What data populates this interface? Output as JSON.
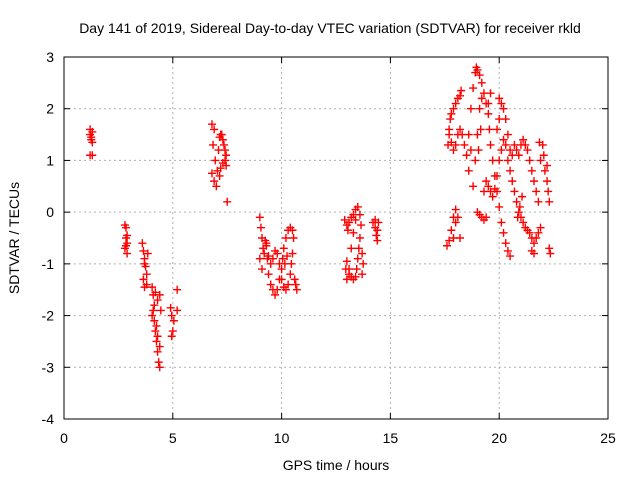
{
  "chart_data": {
    "type": "scatter",
    "title": "Day 141 of 2019, Sidereal Day-to-day VTEC variation (SDTVAR) for receiver rkld",
    "xlabel": "GPS time / hours",
    "ylabel": "SDTVAR / TECUs",
    "xlim": [
      0,
      25
    ],
    "ylim": [
      -4,
      3
    ],
    "xticks": [
      "0",
      "5",
      "10",
      "15",
      "20",
      "25"
    ],
    "yticks": [
      "-4",
      "-3",
      "-2",
      "-1",
      "0",
      "1",
      "2",
      "3"
    ],
    "grid": true,
    "marker": "plus",
    "color": "#ff0000",
    "points": [
      [
        1.2,
        1.6
      ],
      [
        1.2,
        1.5
      ],
      [
        1.25,
        1.45
      ],
      [
        1.25,
        1.4
      ],
      [
        1.3,
        1.55
      ],
      [
        1.3,
        1.35
      ],
      [
        1.2,
        1.1
      ],
      [
        1.3,
        1.1
      ],
      [
        2.8,
        -0.25
      ],
      [
        2.85,
        -0.3
      ],
      [
        2.85,
        -0.5
      ],
      [
        2.9,
        -0.6
      ],
      [
        2.8,
        -0.7
      ],
      [
        2.9,
        -0.8
      ],
      [
        2.85,
        -0.65
      ],
      [
        2.9,
        -0.45
      ],
      [
        3.6,
        -0.6
      ],
      [
        3.65,
        -0.75
      ],
      [
        3.7,
        -0.9
      ],
      [
        3.75,
        -1.05
      ],
      [
        3.8,
        -1.2
      ],
      [
        3.65,
        -1.3
      ],
      [
        3.7,
        -1.0
      ],
      [
        3.8,
        -1.4
      ],
      [
        3.7,
        -1.45
      ],
      [
        3.85,
        -0.8
      ],
      [
        4.05,
        -1.45
      ],
      [
        4.1,
        -1.6
      ],
      [
        4.1,
        -1.9
      ],
      [
        4.15,
        -2.1
      ],
      [
        4.2,
        -2.3
      ],
      [
        4.25,
        -2.5
      ],
      [
        4.3,
        -2.7
      ],
      [
        4.35,
        -2.9
      ],
      [
        4.4,
        -3.0
      ],
      [
        4.05,
        -2.0
      ],
      [
        4.15,
        -1.8
      ],
      [
        4.25,
        -2.2
      ],
      [
        4.3,
        -2.4
      ],
      [
        4.4,
        -2.6
      ],
      [
        4.45,
        -1.9
      ],
      [
        4.4,
        -1.6
      ],
      [
        4.3,
        -1.7
      ],
      [
        4.2,
        -1.55
      ],
      [
        4.9,
        -1.85
      ],
      [
        4.95,
        -2.0
      ],
      [
        5.0,
        -2.3
      ],
      [
        4.95,
        -2.4
      ],
      [
        5.05,
        -2.1
      ],
      [
        5.2,
        -1.5
      ],
      [
        5.2,
        -1.9
      ],
      [
        6.8,
        1.7
      ],
      [
        6.9,
        1.6
      ],
      [
        6.85,
        1.3
      ],
      [
        6.95,
        1.0
      ],
      [
        6.8,
        0.75
      ],
      [
        6.9,
        0.6
      ],
      [
        7.0,
        0.5
      ],
      [
        7.05,
        0.8
      ],
      [
        7.1,
        1.2
      ],
      [
        7.15,
        1.45
      ],
      [
        7.2,
        1.5
      ],
      [
        7.3,
        1.4
      ],
      [
        7.35,
        1.3
      ],
      [
        7.4,
        1.2
      ],
      [
        7.4,
        1.0
      ],
      [
        7.45,
        0.9
      ],
      [
        7.3,
        0.95
      ],
      [
        7.2,
        0.85
      ],
      [
        7.15,
        0.7
      ],
      [
        7.25,
        1.5
      ],
      [
        7.45,
        1.1
      ],
      [
        7.5,
        0.2
      ],
      [
        9.0,
        -0.1
      ],
      [
        9.05,
        -0.3
      ],
      [
        9.1,
        -0.5
      ],
      [
        9.15,
        -0.7
      ],
      [
        9.0,
        -0.9
      ],
      [
        9.1,
        -1.1
      ],
      [
        9.2,
        -0.8
      ],
      [
        9.3,
        -0.6
      ],
      [
        9.35,
        -0.9
      ],
      [
        9.4,
        -1.2
      ],
      [
        9.5,
        -1.4
      ],
      [
        9.6,
        -1.5
      ],
      [
        9.7,
        -1.6
      ],
      [
        9.8,
        -1.5
      ],
      [
        9.9,
        -1.3
      ],
      [
        10.0,
        -1.1
      ],
      [
        10.05,
        -0.9
      ],
      [
        10.1,
        -0.7
      ],
      [
        10.2,
        -0.5
      ],
      [
        10.3,
        -0.35
      ],
      [
        10.4,
        -0.3
      ],
      [
        10.5,
        -0.35
      ],
      [
        10.55,
        -0.5
      ],
      [
        10.5,
        -0.8
      ],
      [
        10.45,
        -1.0
      ],
      [
        10.4,
        -1.2
      ],
      [
        10.3,
        -1.4
      ],
      [
        10.2,
        -1.5
      ],
      [
        10.1,
        -1.45
      ],
      [
        10.0,
        -1.3
      ],
      [
        9.9,
        -1.0
      ],
      [
        9.8,
        -0.8
      ],
      [
        9.7,
        -0.75
      ],
      [
        9.6,
        -0.9
      ],
      [
        9.5,
        -1.0
      ],
      [
        9.4,
        -0.85
      ],
      [
        9.3,
        -0.65
      ],
      [
        9.25,
        -0.55
      ],
      [
        10.6,
        -1.3
      ],
      [
        10.65,
        -1.4
      ],
      [
        10.7,
        -1.5
      ],
      [
        10.25,
        -0.85
      ],
      [
        10.15,
        -1.0
      ],
      [
        12.9,
        -0.15
      ],
      [
        13.0,
        -0.25
      ],
      [
        13.05,
        -0.35
      ],
      [
        13.1,
        -0.2
      ],
      [
        13.2,
        -0.1
      ],
      [
        13.3,
        -0.05
      ],
      [
        13.4,
        0.05
      ],
      [
        13.5,
        0.1
      ],
      [
        13.6,
        -0.05
      ],
      [
        13.65,
        -0.25
      ],
      [
        13.6,
        -0.5
      ],
      [
        13.55,
        -0.7
      ],
      [
        13.5,
        -0.9
      ],
      [
        13.45,
        -1.1
      ],
      [
        13.4,
        -1.25
      ],
      [
        13.3,
        -1.3
      ],
      [
        13.2,
        -1.25
      ],
      [
        13.1,
        -1.1
      ],
      [
        13.0,
        -0.95
      ],
      [
        12.95,
        -1.1
      ],
      [
        13.0,
        -1.3
      ],
      [
        13.1,
        -1.2
      ],
      [
        13.2,
        -0.7
      ],
      [
        13.3,
        -0.4
      ],
      [
        13.4,
        -0.15
      ],
      [
        13.7,
        -0.8
      ],
      [
        13.75,
        -1.0
      ],
      [
        13.7,
        -1.2
      ],
      [
        14.2,
        -0.2
      ],
      [
        14.3,
        -0.3
      ],
      [
        14.35,
        -0.45
      ],
      [
        14.4,
        -0.55
      ],
      [
        14.3,
        -0.15
      ],
      [
        14.45,
        -0.2
      ],
      [
        14.4,
        -0.35
      ],
      [
        17.6,
        -0.65
      ],
      [
        17.7,
        -0.55
      ],
      [
        17.8,
        -0.35
      ],
      [
        17.9,
        -0.1
      ],
      [
        18.0,
        0.05
      ],
      [
        18.1,
        -0.1
      ],
      [
        17.65,
        1.3
      ],
      [
        17.7,
        1.6
      ],
      [
        17.75,
        1.8
      ],
      [
        17.8,
        1.9
      ],
      [
        17.9,
        2.0
      ],
      [
        18.0,
        2.1
      ],
      [
        18.1,
        2.2
      ],
      [
        18.2,
        2.25
      ],
      [
        18.25,
        2.35
      ],
      [
        17.7,
        1.5
      ],
      [
        17.8,
        1.35
      ],
      [
        17.9,
        1.2
      ],
      [
        18.0,
        1.3
      ],
      [
        18.1,
        1.5
      ],
      [
        18.2,
        1.6
      ],
      [
        18.3,
        1.5
      ],
      [
        18.4,
        1.3
      ],
      [
        18.5,
        1.1
      ],
      [
        18.6,
        1.5
      ],
      [
        18.7,
        2.0
      ],
      [
        18.8,
        2.4
      ],
      [
        18.9,
        2.7
      ],
      [
        18.95,
        2.8
      ],
      [
        19.0,
        2.75
      ],
      [
        19.1,
        2.65
      ],
      [
        19.2,
        2.5
      ],
      [
        19.3,
        2.3
      ],
      [
        19.4,
        2.1
      ],
      [
        19.5,
        1.9
      ],
      [
        19.55,
        1.6
      ],
      [
        19.6,
        1.3
      ],
      [
        19.7,
        1.0
      ],
      [
        19.8,
        0.7
      ],
      [
        19.9,
        0.4
      ],
      [
        20.0,
        0.1
      ],
      [
        20.1,
        -0.2
      ],
      [
        20.2,
        -0.4
      ],
      [
        20.3,
        -0.6
      ],
      [
        20.4,
        -0.75
      ],
      [
        20.5,
        -0.85
      ],
      [
        18.8,
        0.5
      ],
      [
        18.9,
        1.0
      ],
      [
        19.0,
        1.5
      ],
      [
        19.1,
        2.0
      ],
      [
        19.2,
        2.2
      ],
      [
        19.0,
        0.0
      ],
      [
        19.1,
        -0.05
      ],
      [
        19.2,
        -0.1
      ],
      [
        19.3,
        -0.15
      ],
      [
        19.4,
        -0.1
      ],
      [
        19.3,
        0.4
      ],
      [
        19.4,
        0.6
      ],
      [
        19.5,
        0.5
      ],
      [
        19.6,
        0.4
      ],
      [
        19.7,
        0.3
      ],
      [
        19.8,
        0.45
      ],
      [
        19.9,
        0.7
      ],
      [
        20.0,
        1.0
      ],
      [
        20.1,
        1.2
      ],
      [
        20.2,
        1.4
      ],
      [
        20.3,
        1.3
      ],
      [
        20.4,
        1.0
      ],
      [
        20.5,
        0.8
      ],
      [
        20.6,
        0.6
      ],
      [
        20.7,
        0.4
      ],
      [
        20.8,
        0.2
      ],
      [
        20.9,
        0.0
      ],
      [
        19.5,
        2.1
      ],
      [
        19.6,
        2.3
      ],
      [
        19.9,
        1.6
      ],
      [
        20.0,
        1.8
      ],
      [
        20.0,
        2.2
      ],
      [
        20.1,
        2.1
      ],
      [
        20.2,
        2.0
      ],
      [
        20.3,
        1.8
      ],
      [
        20.4,
        1.5
      ],
      [
        20.5,
        1.2
      ],
      [
        20.6,
        1.1
      ],
      [
        20.7,
        1.3
      ],
      [
        20.8,
        1.2
      ],
      [
        20.9,
        1.1
      ],
      [
        21.0,
        1.3
      ],
      [
        21.1,
        1.4
      ],
      [
        21.2,
        1.3
      ],
      [
        21.3,
        1.2
      ],
      [
        21.4,
        1.0
      ],
      [
        21.5,
        0.8
      ],
      [
        21.6,
        0.6
      ],
      [
        21.7,
        0.4
      ],
      [
        21.8,
        0.2
      ],
      [
        21.0,
        -0.1
      ],
      [
        21.1,
        -0.2
      ],
      [
        21.2,
        -0.3
      ],
      [
        21.3,
        -0.35
      ],
      [
        21.4,
        -0.4
      ],
      [
        21.5,
        -0.5
      ],
      [
        21.6,
        -0.6
      ],
      [
        21.7,
        -0.5
      ],
      [
        21.8,
        -0.4
      ],
      [
        21.9,
        -0.3
      ],
      [
        21.5,
        -0.75
      ],
      [
        21.6,
        -0.8
      ],
      [
        21.9,
        1.0
      ],
      [
        22.0,
        1.3
      ],
      [
        21.85,
        1.35
      ],
      [
        22.05,
        1.1
      ],
      [
        22.1,
        0.8
      ],
      [
        22.2,
        0.6
      ],
      [
        22.25,
        0.4
      ],
      [
        22.3,
        0.2
      ],
      [
        22.3,
        -0.7
      ],
      [
        22.35,
        -0.8
      ],
      [
        22.2,
        0.9
      ],
      [
        20.85,
        -0.1
      ],
      [
        20.95,
        0.1
      ],
      [
        21.05,
        0.3
      ],
      [
        18.2,
        -0.5
      ],
      [
        18.0,
        -0.2
      ],
      [
        17.9,
        -0.5
      ],
      [
        19.05,
        1.2
      ],
      [
        19.15,
        1.6
      ],
      [
        18.6,
        0.8
      ],
      [
        18.7,
        1.2
      ]
    ]
  }
}
